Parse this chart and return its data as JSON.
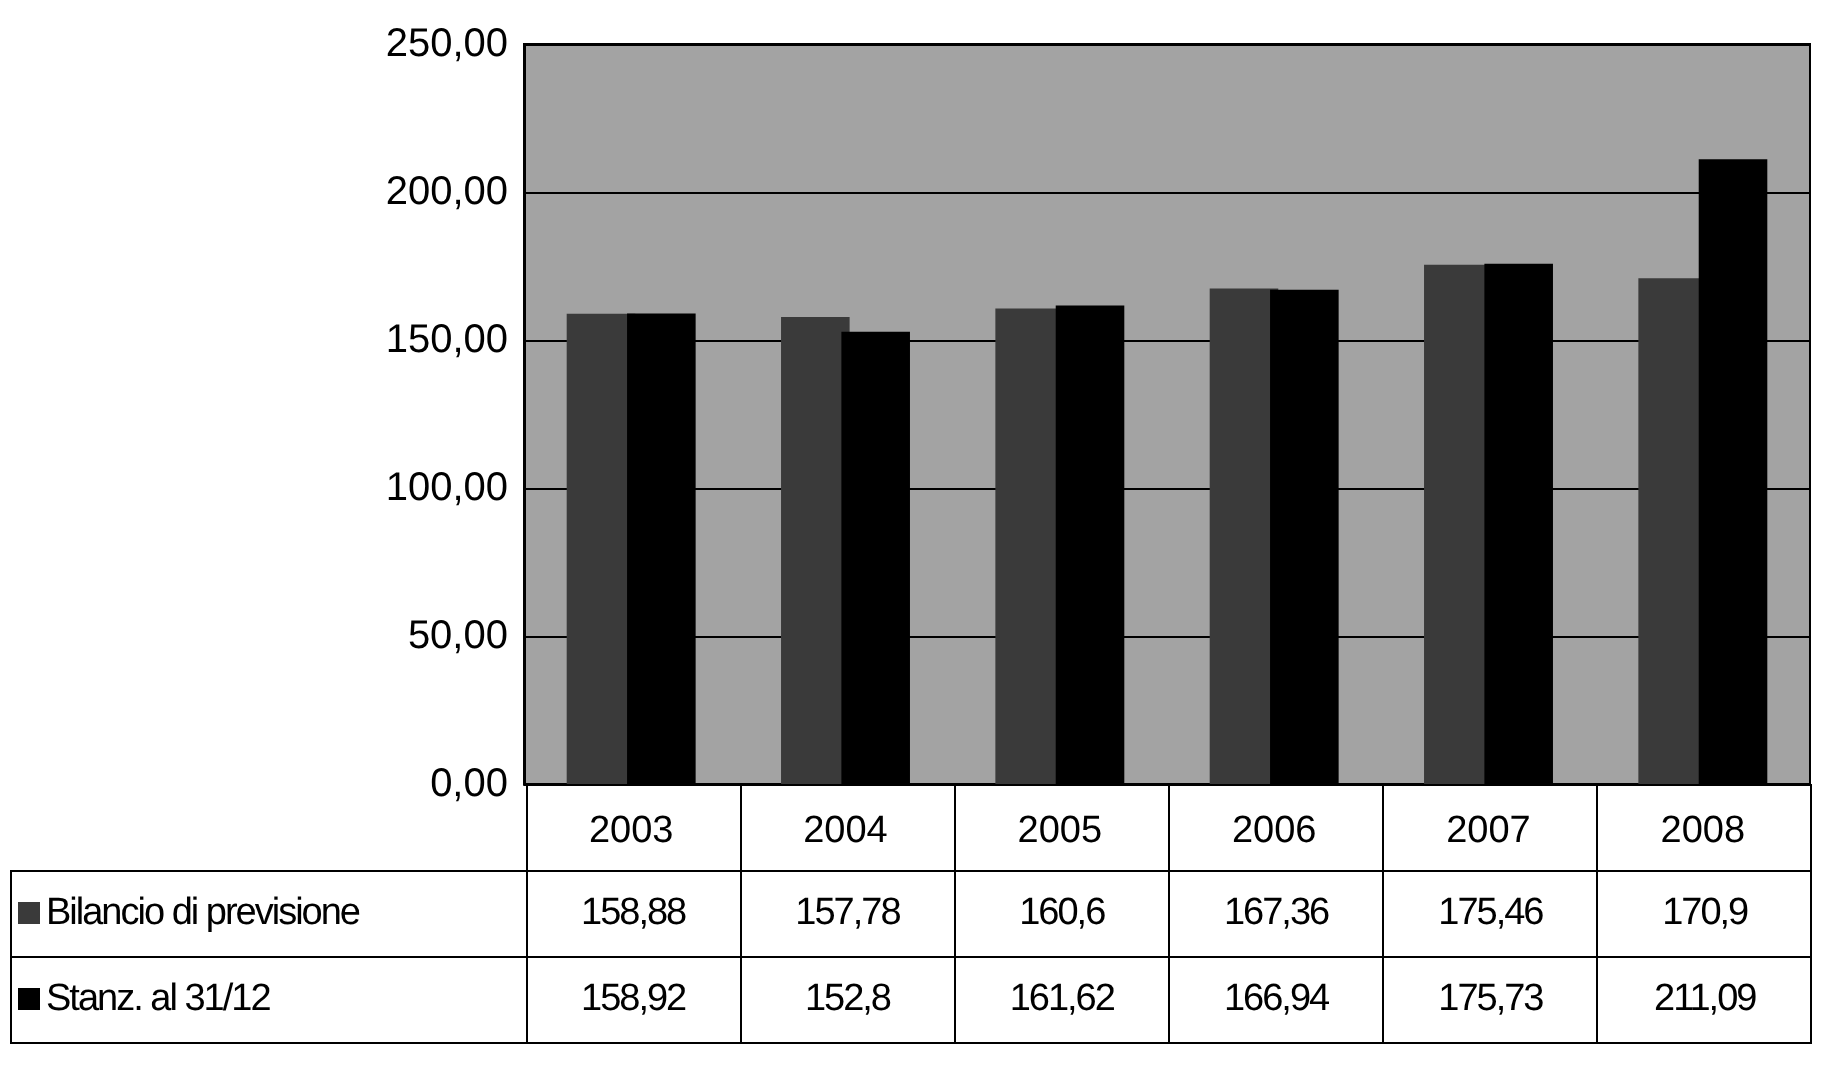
{
  "chart_data": {
    "type": "bar",
    "categories": [
      "2003",
      "2004",
      "2005",
      "2006",
      "2007",
      "2008"
    ],
    "series": [
      {
        "name": "Bilancio di previsione",
        "color": "#3a3a3a",
        "values": [
          158.88,
          157.78,
          160.6,
          167.36,
          175.46,
          170.9
        ],
        "value_labels": [
          "158,88",
          "157,78",
          "160,6",
          "167,36",
          "175,46",
          "170,9"
        ]
      },
      {
        "name": "Stanz. al 31/12",
        "color": "#000000",
        "values": [
          158.92,
          152.8,
          161.62,
          166.94,
          175.73,
          211.09
        ],
        "value_labels": [
          "158,92",
          "152,8",
          "161,62",
          "166,94",
          "175,73",
          "211,09"
        ]
      }
    ],
    "ylim": [
      0,
      250
    ],
    "yticks": [
      {
        "value": 0,
        "label": "0,00"
      },
      {
        "value": 50,
        "label": "50,00"
      },
      {
        "value": 100,
        "label": "100,00"
      },
      {
        "value": 150,
        "label": "150,00"
      },
      {
        "value": 200,
        "label": "200,00"
      },
      {
        "value": 250,
        "label": "250,00"
      }
    ],
    "grid": "y",
    "legend": "bottom"
  }
}
